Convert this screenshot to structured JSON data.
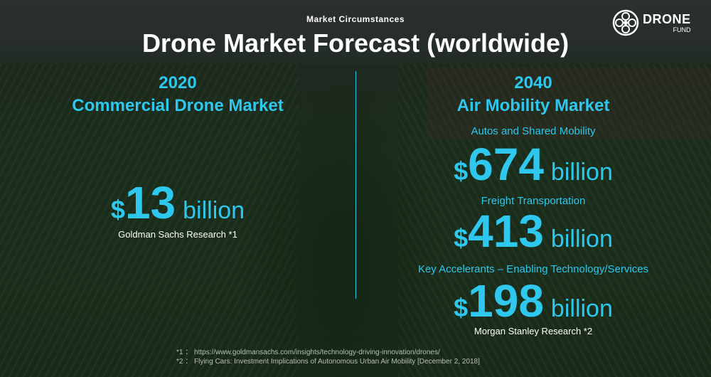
{
  "header": {
    "kicker": "Market Circumstances",
    "title": "Drone Market Forecast (worldwide)"
  },
  "logo": {
    "name": "DRONE",
    "sub": "FUND",
    "icon": "drone-fund-logo-icon"
  },
  "left": {
    "year": "2020",
    "market": "Commercial Drone Market",
    "currency": "$",
    "amount": "13",
    "unit": "billion",
    "source": "Goldman Sachs Research *1"
  },
  "right": {
    "year": "2040",
    "market": "Air Mobility Market",
    "segments": [
      {
        "label": "Autos and Shared Mobility",
        "currency": "$",
        "amount": "674",
        "unit": "billion"
      },
      {
        "label": "Freight Transportation",
        "currency": "$",
        "amount": "413",
        "unit": "billion"
      },
      {
        "label": "Key Accelerants – Enabling Technology/Services",
        "currency": "$",
        "amount": "198",
        "unit": "billion"
      }
    ],
    "source": "Morgan Stanley Research *2"
  },
  "footnotes": [
    "*1 ： https://www.goldmansachs.com/insights/technology-driving-innovation/drones/",
    "*2 ： Flying Cars: Investment Implications of Autonomous Urban Air Mobility [December 2, 2018]"
  ],
  "colors": {
    "accent": "#2ec8ee",
    "text": "#ffffff"
  }
}
